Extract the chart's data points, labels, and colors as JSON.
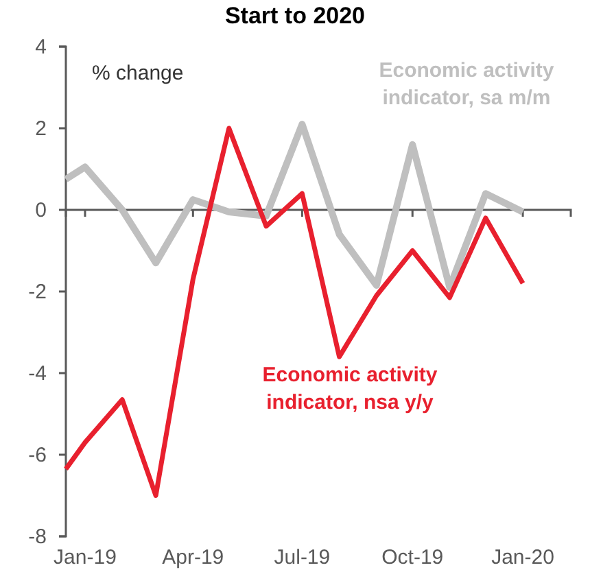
{
  "chart_data": {
    "type": "line",
    "title": "Start to 2020",
    "annotations": [
      "% change"
    ],
    "x": [
      "2018-12-16",
      "2019-01",
      "2019-02",
      "2019-03",
      "2019-04",
      "2019-05",
      "2019-06",
      "2019-07",
      "2019-08",
      "2019-09",
      "2019-10",
      "2019-11",
      "2019-12",
      "2020-01"
    ],
    "series": [
      {
        "name": "Economic activity indicator, sa m/m",
        "color": "#bfbfbf",
        "values": [
          0.75,
          1.05,
          0.0,
          -1.3,
          0.25,
          -0.05,
          -0.15,
          2.1,
          -0.6,
          -1.85,
          1.6,
          -1.9,
          0.4,
          -0.05
        ]
      },
      {
        "name": "Economic activity indicator, nsa y/y",
        "color": "#e8202e",
        "values": [
          -6.35,
          -5.7,
          -4.65,
          -7.0,
          -1.7,
          2.0,
          -0.4,
          0.4,
          -3.6,
          -2.1,
          -1.0,
          -2.15,
          -0.2,
          -1.8
        ]
      }
    ],
    "xlim": [
      "2018-12-16",
      "2020-02-10"
    ],
    "xticks": [
      {
        "value": "2019-01",
        "label": "Jan-19"
      },
      {
        "value": "2019-04",
        "label": "Apr-19"
      },
      {
        "value": "2019-07",
        "label": "Jul-19"
      },
      {
        "value": "2019-10",
        "label": "Oct-19"
      },
      {
        "value": "2020-01",
        "label": "Jan-20"
      }
    ],
    "ylim": [
      -8,
      4
    ],
    "yticks": [
      -8,
      -6,
      -4,
      -2,
      0,
      2,
      4
    ],
    "grid": false,
    "legend": false,
    "marker": "none",
    "line_style": "solid"
  }
}
